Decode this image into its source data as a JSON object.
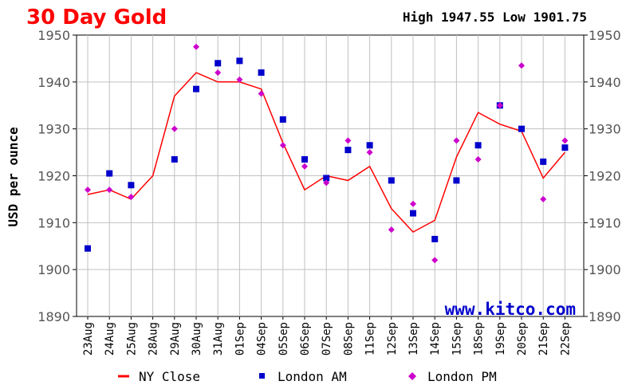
{
  "header": {
    "title": "30 Day Gold",
    "high_low": "High 1947.55 Low 1901.75",
    "watermark": "www.kitco.com"
  },
  "colors": {
    "title": "#ff0000",
    "ny_close": "#ff0000",
    "london_am": "#0000cc",
    "london_pm": "#cc00cc",
    "grid": "#c0c0c0",
    "watermark": "#0000cc"
  },
  "chart_data": {
    "type": "line",
    "title": "30 Day Gold",
    "ylabel": "USD per ounce",
    "xlabel": "",
    "ylim": [
      1890,
      1950
    ],
    "yticks": [
      1890,
      1900,
      1910,
      1920,
      1930,
      1940,
      1950
    ],
    "categories": [
      "23Aug",
      "24Aug",
      "25Aug",
      "28Aug",
      "29Aug",
      "30Aug",
      "31Aug",
      "01Sep",
      "04Sep",
      "05Sep",
      "06Sep",
      "07Sep",
      "08Sep",
      "11Sep",
      "12Sep",
      "13Sep",
      "14Sep",
      "15Sep",
      "18Sep",
      "19Sep",
      "20Sep",
      "21Sep",
      "22Sep"
    ],
    "legend_position": "bottom",
    "grid": true,
    "series": [
      {
        "name": "NY Close",
        "style": "line",
        "color": "#ff0000",
        "values": [
          1916.0,
          1917.0,
          1915.0,
          1920.0,
          1937.0,
          1942.0,
          1940.0,
          1940.0,
          1938.5,
          1927.0,
          1917.0,
          1920.0,
          1919.0,
          1922.0,
          1913.0,
          1908.0,
          1910.5,
          1924.0,
          1933.5,
          1931.0,
          1929.5,
          1919.5,
          1925.0
        ]
      },
      {
        "name": "London AM",
        "style": "square",
        "color": "#0000cc",
        "values": [
          1904.5,
          1920.5,
          1918.0,
          null,
          1923.5,
          1938.5,
          1944.0,
          1944.5,
          1942.0,
          1932.0,
          1923.5,
          1919.5,
          1925.5,
          1926.5,
          1919.0,
          1912.0,
          1906.5,
          1919.0,
          1926.5,
          1935.0,
          1930.0,
          1923.0,
          1926.0
        ]
      },
      {
        "name": "London PM",
        "style": "diamond",
        "color": "#cc00cc",
        "values": [
          1917.0,
          1917.0,
          1915.5,
          null,
          1930.0,
          1947.5,
          1942.0,
          1940.5,
          1937.5,
          1926.5,
          1922.0,
          1918.5,
          1927.5,
          1925.0,
          1908.5,
          1914.0,
          1902.0,
          1927.5,
          1923.5,
          1935.0,
          1943.5,
          1915.0,
          1927.5
        ]
      }
    ]
  }
}
